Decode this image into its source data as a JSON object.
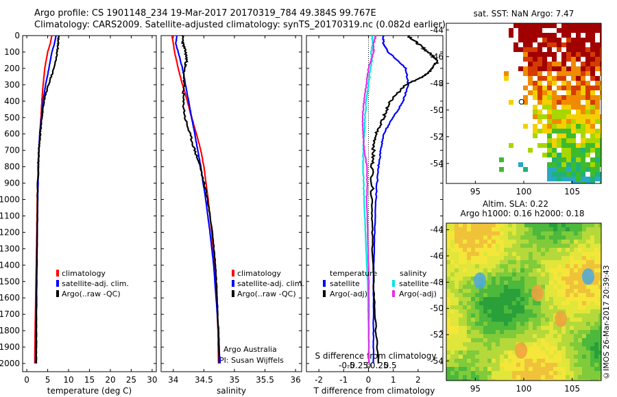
{
  "header": {
    "line1": "Argo profile: CS 1901148_234 19-Mar-2017 20170319_784 49.384S 99.767E",
    "line2": "Climatology: CARS2009. Satellite-adjusted climatology: synTS_20170319.nc (0.082d earlier)"
  },
  "credit": "©IMOS 26-Mar-2017 20:39:43",
  "colors": {
    "red": "#ff0000",
    "blue": "#0000ff",
    "black": "#000000",
    "cyan": "#00e5e5",
    "magenta": "#e62ee6"
  },
  "chart_data": [
    {
      "id": "temperature",
      "type": "line",
      "xlabel": "temperature (deg C)",
      "ylabel": "",
      "xlim": [
        -1,
        31
      ],
      "ylim": [
        2050,
        0
      ],
      "xticks": [
        0,
        5,
        10,
        15,
        20,
        25,
        30
      ],
      "yticks": [
        0,
        100,
        200,
        300,
        400,
        500,
        600,
        700,
        800,
        900,
        1000,
        1100,
        1200,
        1300,
        1400,
        1500,
        1600,
        1700,
        1800,
        1900,
        2000
      ],
      "legend": [
        "climatology",
        "satellite-adj. clim.",
        "Argo(..raw -QC)"
      ],
      "series": [
        {
          "name": "climatology",
          "color": "red",
          "depth": [
            0,
            50,
            100,
            200,
            300,
            400,
            500,
            600,
            700,
            800,
            1000,
            1200,
            1500,
            1800,
            2000
          ],
          "values": [
            6.0,
            5.6,
            5.0,
            4.3,
            3.9,
            3.6,
            3.4,
            3.1,
            2.9,
            2.7,
            2.5,
            2.4,
            2.2,
            2.0,
            1.9
          ]
        },
        {
          "name": "satellite-adj. clim.",
          "color": "blue",
          "depth": [
            0,
            50,
            100,
            200,
            300,
            400,
            500,
            600,
            700,
            800,
            1000,
            1200,
            1500,
            1800,
            2000
          ],
          "values": [
            7.0,
            6.6,
            6.0,
            5.3,
            4.5,
            3.9,
            3.5,
            3.1,
            2.9,
            2.8,
            2.6,
            2.5,
            2.3,
            2.2,
            2.1
          ]
        },
        {
          "name": "Argo(..raw -QC)",
          "color": "black",
          "depth": [
            0,
            50,
            100,
            200,
            300,
            400,
            500,
            600,
            700,
            800,
            1000,
            1200,
            1500,
            1800,
            2000
          ],
          "values": [
            7.6,
            7.5,
            7.3,
            6.5,
            5.2,
            4.1,
            3.6,
            3.2,
            2.9,
            2.7,
            2.6,
            2.5,
            2.4,
            2.3,
            2.3
          ]
        }
      ]
    },
    {
      "id": "salinity",
      "type": "line",
      "xlabel": "salinity",
      "xlim": [
        33.8,
        36.1
      ],
      "ylim": [
        2050,
        0
      ],
      "xticks": [
        34,
        34.5,
        35,
        35.5,
        36
      ],
      "legend": [
        "climatology",
        "satellite-adj. clim.",
        "Argo(..raw -QC)"
      ],
      "annotations": [
        "Argo Australia",
        "PI: Susan Wijffels"
      ],
      "series": [
        {
          "name": "climatology",
          "color": "red",
          "depth": [
            0,
            100,
            200,
            300,
            400,
            500,
            600,
            700,
            800,
            1000,
            1200,
            1400,
            1600,
            1800,
            2000
          ],
          "values": [
            33.98,
            34.02,
            34.08,
            34.15,
            34.23,
            34.3,
            34.38,
            34.45,
            34.5,
            34.57,
            34.63,
            34.68,
            34.71,
            34.73,
            34.74
          ]
        },
        {
          "name": "satellite-adj. clim.",
          "color": "blue",
          "depth": [
            0,
            50,
            100,
            200,
            300,
            400,
            500,
            600,
            700,
            800,
            1000,
            1200,
            1400,
            1600,
            1800,
            2000
          ],
          "values": [
            34.06,
            34.04,
            34.08,
            34.15,
            34.2,
            34.25,
            34.3,
            34.35,
            34.4,
            34.45,
            34.53,
            34.6,
            34.66,
            34.7,
            34.74,
            34.76
          ]
        },
        {
          "name": "Argo(..raw -QC)",
          "color": "black",
          "depth": [
            0,
            50,
            100,
            150,
            200,
            300,
            400,
            500,
            600,
            700,
            800,
            1000,
            1200,
            1400,
            1600,
            1800,
            2000
          ],
          "values": [
            34.15,
            34.16,
            34.2,
            34.22,
            34.18,
            34.17,
            34.16,
            34.19,
            34.27,
            34.35,
            34.44,
            34.56,
            34.64,
            34.69,
            34.72,
            34.74,
            34.75
          ]
        }
      ]
    },
    {
      "id": "differences",
      "type": "line",
      "xlabel": "T difference from climatology",
      "xlabel2": "S difference from climatology",
      "xlim": [
        -2.5,
        3.0
      ],
      "ylim": [
        2050,
        0
      ],
      "xticks": [
        -2,
        -1,
        0,
        1,
        2
      ],
      "xtick_labels": [
        "-2",
        "-1",
        "0",
        "1",
        "2"
      ],
      "sticks": [
        -0.5,
        -0.25,
        0,
        0.25,
        0.5
      ],
      "stick_labels": [
        "-0.5",
        "-0.25",
        "0",
        "0.25",
        "0.5"
      ],
      "legend_titles": [
        "temperature",
        "salinity"
      ],
      "legend": [
        "satellite",
        "Argo(-adj)",
        "satellite",
        "Argo(-adj)"
      ],
      "series": [
        {
          "name": "T satellite",
          "color": "blue",
          "depth": [
            0,
            50,
            100,
            200,
            300,
            400,
            500,
            600,
            700,
            800,
            1000,
            1200,
            1500,
            1800,
            2000
          ],
          "values": [
            0.6,
            0.6,
            0.8,
            1.5,
            1.6,
            1.4,
            1.0,
            0.6,
            0.5,
            0.4,
            0.3,
            0.25,
            0.2,
            0.2,
            0.2
          ]
        },
        {
          "name": "T Argo(-adj)",
          "color": "black",
          "depth": [
            0,
            50,
            100,
            150,
            200,
            250,
            300,
            400,
            500,
            600,
            700,
            800,
            1000,
            1200,
            1500,
            1800,
            2000
          ],
          "values": [
            1.6,
            2.0,
            2.4,
            2.8,
            2.6,
            2.2,
            1.5,
            0.9,
            0.6,
            0.3,
            0.2,
            0.15,
            0.15,
            0.15,
            0.2,
            0.3,
            0.4
          ]
        },
        {
          "name": "S satellite",
          "color": "cyan",
          "depth": [
            0,
            50,
            100,
            150,
            200,
            300,
            400,
            500,
            600,
            700,
            800,
            1000,
            1200,
            1500,
            1800,
            2000
          ],
          "values": [
            0.08,
            0.1,
            0.06,
            0.08,
            0.05,
            0.0,
            -0.05,
            -0.08,
            -0.1,
            -0.12,
            -0.12,
            -0.1,
            -0.07,
            -0.02,
            0.0,
            0.02
          ]
        },
        {
          "name": "S Argo(-adj)",
          "color": "magenta",
          "depth": [
            0,
            50,
            100,
            200,
            300,
            400,
            500,
            600,
            700,
            800,
            900,
            1000,
            1200,
            1500,
            1800,
            2000
          ],
          "values": [
            0.17,
            0.12,
            0.12,
            0.0,
            -0.05,
            -0.1,
            -0.14,
            -0.12,
            -0.1,
            -0.03,
            -0.03,
            -0.04,
            -0.02,
            0.01,
            0.01,
            0.01
          ]
        }
      ]
    },
    {
      "id": "sst_map",
      "type": "heatmap",
      "title": "sat. SST: NaN Argo: 7.47",
      "xticks": [
        95,
        100,
        105
      ],
      "yticks": [
        -44,
        -46,
        -48,
        -50,
        -52,
        -54
      ],
      "xlim": [
        92,
        108
      ],
      "ylim": [
        -55.5,
        -43.5
      ],
      "argo_position": [
        99.767,
        -49.384
      ]
    },
    {
      "id": "sla_map",
      "type": "heatmap",
      "title": "Altim. SLA: 0.22",
      "subtitle": "Argo h1000: 0.16 h2000: 0.18",
      "xticks": [
        95,
        100,
        105
      ],
      "yticks": [
        -44,
        -46,
        -48,
        -50,
        -52,
        -54
      ],
      "xlim": [
        92,
        108
      ],
      "ylim": [
        -55.5,
        -43.5
      ]
    }
  ]
}
